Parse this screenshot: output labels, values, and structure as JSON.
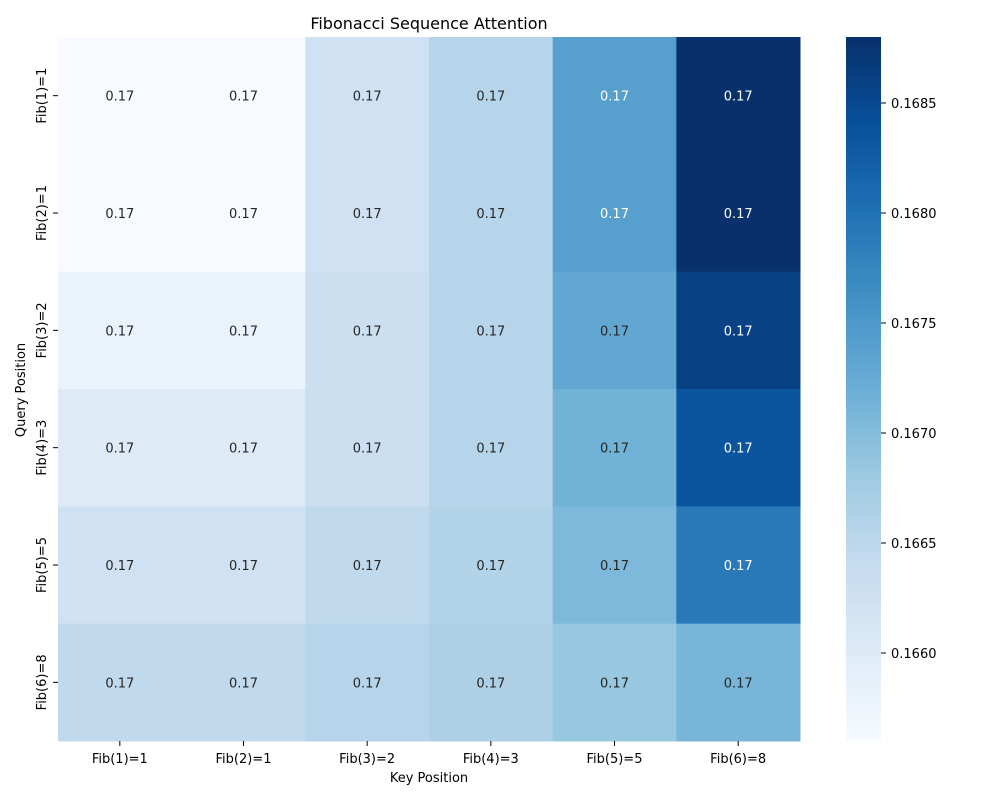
{
  "chart_data": {
    "type": "heatmap",
    "title": "Fibonacci Sequence Attention",
    "xlabel": "Key Position",
    "ylabel": "Query Position",
    "x_categories": [
      "Fib(1)=1",
      "Fib(2)=1",
      "Fib(3)=2",
      "Fib(4)=3",
      "Fib(5)=5",
      "Fib(6)=8"
    ],
    "y_categories": [
      "Fib(1)=1",
      "Fib(2)=1",
      "Fib(3)=2",
      "Fib(4)=3",
      "Fib(5)=5",
      "Fib(6)=8"
    ],
    "values": [
      [
        0.1656,
        0.1656,
        0.16625,
        0.16655,
        0.1674,
        0.1688
      ],
      [
        0.1656,
        0.1656,
        0.16625,
        0.16655,
        0.1674,
        0.1688
      ],
      [
        0.1658,
        0.1658,
        0.1663,
        0.16655,
        0.1673,
        0.1686
      ],
      [
        0.166,
        0.166,
        0.1663,
        0.16655,
        0.16715,
        0.16835
      ],
      [
        0.16625,
        0.16625,
        0.16645,
        0.1666,
        0.16705,
        0.1679
      ],
      [
        0.16645,
        0.16645,
        0.16655,
        0.16665,
        0.16685,
        0.1671
      ]
    ],
    "annotations": [
      [
        "0.17",
        "0.17",
        "0.17",
        "0.17",
        "0.17",
        "0.17"
      ],
      [
        "0.17",
        "0.17",
        "0.17",
        "0.17",
        "0.17",
        "0.17"
      ],
      [
        "0.17",
        "0.17",
        "0.17",
        "0.17",
        "0.17",
        "0.17"
      ],
      [
        "0.17",
        "0.17",
        "0.17",
        "0.17",
        "0.17",
        "0.17"
      ],
      [
        "0.17",
        "0.17",
        "0.17",
        "0.17",
        "0.17",
        "0.17"
      ],
      [
        "0.17",
        "0.17",
        "0.17",
        "0.17",
        "0.17",
        "0.17"
      ]
    ],
    "colormap": "Blues",
    "colorbar": {
      "vmin": 0.1656,
      "vmax": 0.1688,
      "ticks": [
        0.166,
        0.1665,
        0.167,
        0.1675,
        0.168,
        0.1685
      ],
      "tick_labels": [
        "0.1660",
        "0.1665",
        "0.1670",
        "0.1675",
        "0.1680",
        "0.1685"
      ]
    },
    "annotation_dark_color": "#262626",
    "annotation_light_color": "#ffffff"
  }
}
